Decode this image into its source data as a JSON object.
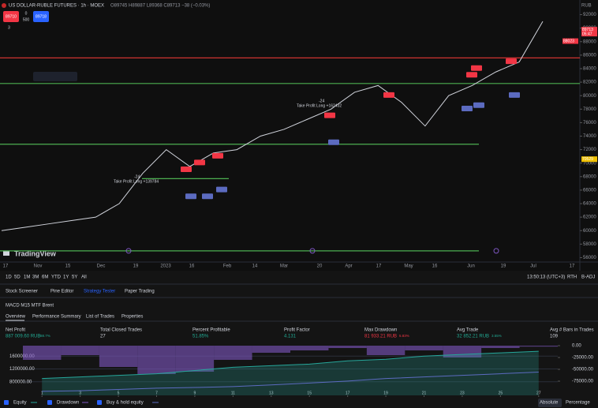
{
  "header": {
    "symbol": "US DOLLAR-RUBLE FUTURES · 1h · MOEX",
    "ohlc": "O89745 H89887 L89368 C89713 −38 (−0.03%)",
    "sell": "89710",
    "spread": "0",
    "qty": "500",
    "buy": "89718",
    "indicators": "3"
  },
  "chart_data": [
    {
      "type": "line",
      "color": "#d1d4dc",
      "values": [
        60000,
        60500,
        61000,
        61500,
        62000,
        64000,
        68500,
        72000,
        69500,
        71500,
        72000,
        74000,
        75000,
        76500,
        78000,
        80500,
        81500,
        79000,
        75500,
        80000,
        81500,
        83500,
        85000,
        91000
      ],
      "ylim": [
        55000,
        93000
      ],
      "yticks": [
        56000,
        58000,
        60000,
        62000,
        64000,
        66000,
        68000,
        70000,
        72000,
        74000,
        76000,
        78000,
        80000,
        82000,
        84000,
        86000,
        88000,
        90000,
        92000
      ],
      "xtick_labels": [
        "17",
        "Nov",
        "15",
        "Dec",
        "19",
        "2023",
        "16",
        "Feb",
        "14",
        "Mar",
        "20",
        "Apr",
        "17",
        "May",
        "16",
        "Jun",
        "19",
        "Jul",
        "17"
      ],
      "axis_unit": "RUB",
      "hlines": [
        {
          "value": 85600,
          "color": "#e53935"
        },
        {
          "value": 81800,
          "color": "#4caf50"
        },
        {
          "value": 72800,
          "color": "#4caf50"
        },
        {
          "value": 67700,
          "color": "#4caf50"
        },
        {
          "value": 57000,
          "color": "#4caf50"
        }
      ],
      "price_labels": [
        {
          "value": 89713,
          "label": "89713",
          "time": "05:47",
          "color": "#f23645"
        },
        {
          "value": 88023,
          "label": "88023",
          "color": "#f23645"
        },
        {
          "value": 70529,
          "label": "70529",
          "color": "#f0c000"
        }
      ],
      "annotations": [
        "-24",
        "Take Profit Long +162432",
        "-24",
        "Take Profit Long +139784"
      ],
      "watermark": "TradingView",
      "grid": false
    },
    {
      "type": "area",
      "x": [
        1,
        3,
        5,
        7,
        9,
        11,
        13,
        15,
        17,
        19,
        21,
        23,
        25,
        27
      ],
      "series": [
        {
          "name": "Equity",
          "color": "#26a69a",
          "values": [
            900000,
            950000,
            1000000,
            1050000,
            1150000,
            1250000,
            1300000,
            1350000,
            1450000,
            1500000,
            1600000,
            1650000,
            1700000,
            1750000
          ]
        },
        {
          "name": "Drawdown",
          "color": "#7e57c2",
          "axis": "y2",
          "values": [
            -30000,
            -20000,
            -45000,
            -60000,
            -55000,
            -30000,
            -15000,
            -10000,
            -5000,
            -20000,
            -10000,
            -25000,
            -5000,
            -2000
          ]
        },
        {
          "name": "Buy & hold equity",
          "color": "#5c6bc0",
          "values": [
            500000,
            520000,
            560000,
            600000,
            620000,
            650000,
            700000,
            760000,
            820000,
            900000,
            950000,
            1000000,
            1050000,
            1100000
          ]
        }
      ],
      "xlim": [
        0,
        28
      ],
      "xticks": [
        1,
        3,
        5,
        7,
        9,
        11,
        13,
        15,
        17,
        19,
        21,
        23,
        25,
        27
      ],
      "ylim": [
        375000,
        1925000
      ],
      "yticks": [
        {
          "value": 800000,
          "label": "800000.00"
        },
        {
          "value": 1200000,
          "label": "1200000.00"
        },
        {
          "value": 1600000,
          "label": "1600000.00"
        }
      ],
      "y2lim": [
        -105000,
        0
      ],
      "y2ticks": [
        {
          "value": -75000,
          "label": "-75000.00"
        },
        {
          "value": -50000,
          "label": "-50000.00"
        },
        {
          "value": -25000,
          "label": "-25000.00"
        },
        {
          "value": 0,
          "label": "0.00"
        }
      ],
      "modes": [
        "Absolute",
        "Percentage"
      ]
    }
  ],
  "toolbar": {
    "ranges": [
      "1D",
      "5D",
      "1M",
      "3M",
      "6M",
      "YTD",
      "1Y",
      "5Y",
      "All"
    ],
    "time": "13:50:13 (UTC+3)",
    "rth": "RTH",
    "adj": "B-ADJ"
  },
  "panels": [
    "Stock Screener",
    "Pine Editor",
    "Strategy Tester",
    "Paper Trading"
  ],
  "strategy": {
    "name": "MACD M15 MTF Brent",
    "tabs": [
      "Overview",
      "Performance Summary",
      "List of Trades",
      "Properties"
    ],
    "stats": [
      {
        "label": "Net Profit",
        "value": "887 009.60 RUB",
        "sub": "88.7%"
      },
      {
        "label": "Total Closed Trades",
        "value": "27"
      },
      {
        "label": "Percent Profitable",
        "value": "51.85%"
      },
      {
        "label": "Profit Factor",
        "value": "4.131"
      },
      {
        "label": "Max Drawdown",
        "value": "81 933.21 RUB",
        "sub": "5.83%"
      },
      {
        "label": "Avg Trade",
        "value": "32 852.21 RUB",
        "sub": "3.55%"
      },
      {
        "label": "Avg # Bars in Trades",
        "value": "109"
      }
    ]
  }
}
